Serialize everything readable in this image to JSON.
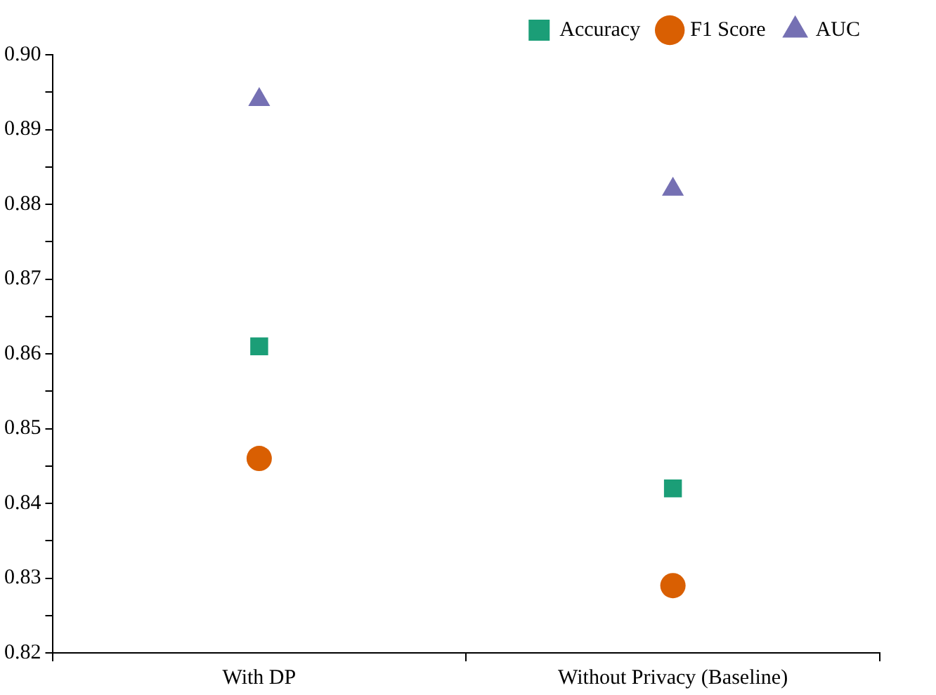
{
  "chart_data": {
    "type": "scatter",
    "categories": [
      "With DP",
      "Without Privacy (Baseline)"
    ],
    "series": [
      {
        "name": "Accuracy",
        "color": "#1b9e77",
        "marker": "square",
        "values": [
          0.861,
          0.842
        ]
      },
      {
        "name": "F1 Score",
        "color": "#d95f02",
        "marker": "circle",
        "values": [
          0.846,
          0.829
        ]
      },
      {
        "name": "AUC",
        "color": "#7570b3",
        "marker": "triangle",
        "values": [
          0.894,
          0.882
        ]
      }
    ],
    "ylim": [
      0.82,
      0.9
    ],
    "yticks": [
      0.82,
      {
        "value": 0.825,
        "label": null
      },
      0.83,
      {
        "value": 0.835,
        "label": null
      },
      0.84,
      {
        "value": 0.845,
        "label": null
      },
      0.85,
      {
        "value": 0.855,
        "label": null
      },
      0.86,
      {
        "value": 0.865,
        "label": null
      },
      0.87,
      {
        "value": 0.875,
        "label": null
      },
      0.88,
      {
        "value": 0.885,
        "label": null
      },
      0.89,
      {
        "value": 0.895,
        "label": null
      },
      {
        "value": 0.9,
        "label": "0.90"
      }
    ],
    "grid": false,
    "legend": "top right"
  }
}
